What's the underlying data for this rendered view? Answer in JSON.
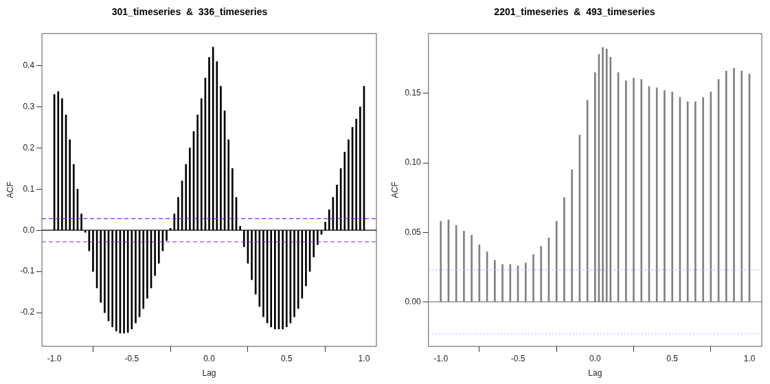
{
  "chart_data": [
    {
      "type": "bar",
      "title": "301_timeseries  &  336_timeseries",
      "xlabel": "Lag",
      "ylabel": "ACF",
      "color": "#000000",
      "x": [
        -1,
        -0.975,
        -0.95,
        -0.925,
        -0.9,
        -0.875,
        -0.85,
        -0.825,
        -0.8,
        -0.775,
        -0.75,
        -0.725,
        -0.7,
        -0.675,
        -0.65,
        -0.625,
        -0.6,
        -0.575,
        -0.55,
        -0.525,
        -0.5,
        -0.475,
        -0.45,
        -0.425,
        -0.4,
        -0.375,
        -0.35,
        -0.325,
        -0.3,
        -0.275,
        -0.25,
        -0.225,
        -0.2,
        -0.175,
        -0.15,
        -0.125,
        -0.1,
        -0.075,
        -0.05,
        -0.025,
        0,
        0.025,
        0.05,
        0.075,
        0.1,
        0.125,
        0.15,
        0.175,
        0.2,
        0.225,
        0.25,
        0.275,
        0.3,
        0.325,
        0.35,
        0.375,
        0.4,
        0.425,
        0.45,
        0.475,
        0.5,
        0.525,
        0.55,
        0.575,
        0.6,
        0.625,
        0.65,
        0.675,
        0.7,
        0.725,
        0.75,
        0.775,
        0.8,
        0.825,
        0.85,
        0.875,
        0.9,
        0.925,
        0.95,
        0.975,
        1
      ],
      "values": [
        0.33,
        0.337,
        0.32,
        0.28,
        0.22,
        0.16,
        0.1,
        0.04,
        -0.005,
        -0.05,
        -0.1,
        -0.14,
        -0.175,
        -0.2,
        -0.22,
        -0.235,
        -0.245,
        -0.25,
        -0.25,
        -0.248,
        -0.24,
        -0.225,
        -0.21,
        -0.19,
        -0.165,
        -0.14,
        -0.11,
        -0.08,
        -0.05,
        -0.025,
        0.005,
        0.04,
        0.08,
        0.12,
        0.16,
        0.2,
        0.24,
        0.28,
        0.32,
        0.37,
        0.42,
        0.445,
        0.41,
        0.35,
        0.29,
        0.22,
        0.15,
        0.08,
        0.01,
        -0.04,
        -0.08,
        -0.12,
        -0.155,
        -0.185,
        -0.21,
        -0.225,
        -0.235,
        -0.24,
        -0.24,
        -0.24,
        -0.235,
        -0.225,
        -0.21,
        -0.19,
        -0.165,
        -0.135,
        -0.1,
        -0.065,
        -0.035,
        -0.01,
        0.02,
        0.05,
        0.08,
        0.11,
        0.15,
        0.19,
        0.22,
        0.25,
        0.27,
        0.3,
        0.35
      ],
      "xlim": [
        -1.08,
        1.08
      ],
      "ylim": [
        -0.282,
        0.478
      ],
      "xticks": [
        {
          "value": -1,
          "label": "-1.0"
        },
        {
          "value": -0.5,
          "label": "-0.5"
        },
        {
          "value": 0,
          "label": "0.0"
        },
        {
          "value": 0.5,
          "label": "0.5"
        },
        {
          "value": 1,
          "label": "1.0"
        }
      ],
      "yticks": [
        {
          "value": -0.2,
          "label": "-0.2"
        },
        {
          "value": -0.1,
          "label": "-0.1"
        },
        {
          "value": 0,
          "label": "0.0"
        },
        {
          "value": 0.1,
          "label": "0.1"
        },
        {
          "value": 0.2,
          "label": "0.2"
        },
        {
          "value": 0.3,
          "label": "0.3"
        },
        {
          "value": 0.4,
          "label": "0.4"
        }
      ],
      "ref_lines": [
        {
          "axis": "y",
          "value": 0,
          "color": "#000000",
          "line_style": "solid"
        },
        {
          "axis": "y",
          "value": 0.028,
          "color": "#7f1fff",
          "line_style": "dashed"
        },
        {
          "axis": "y",
          "value": -0.028,
          "color": "#7f1fff",
          "line_style": "dashed"
        }
      ]
    },
    {
      "type": "bar",
      "title": "2201_timeseries  &  493_timeseries",
      "xlabel": "Lag",
      "ylabel": "ACF",
      "color": "#808080",
      "x": [
        -1,
        -0.95,
        -0.9,
        -0.85,
        -0.8,
        -0.75,
        -0.7,
        -0.65,
        -0.6,
        -0.55,
        -0.5,
        -0.45,
        -0.4,
        -0.35,
        -0.3,
        -0.25,
        -0.2,
        -0.15,
        -0.1,
        -0.05,
        0,
        0.025,
        0.05,
        0.075,
        0.1,
        0.15,
        0.2,
        0.25,
        0.3,
        0.35,
        0.4,
        0.45,
        0.5,
        0.55,
        0.6,
        0.65,
        0.7,
        0.75,
        0.8,
        0.85,
        0.9,
        0.95,
        1
      ],
      "values": [
        0.058,
        0.059,
        0.055,
        0.051,
        0.048,
        0.041,
        0.036,
        0.03,
        0.027,
        0.027,
        0.026,
        0.028,
        0.034,
        0.04,
        0.046,
        0.058,
        0.075,
        0.095,
        0.12,
        0.145,
        0.165,
        0.178,
        0.183,
        0.182,
        0.176,
        0.165,
        0.159,
        0.161,
        0.16,
        0.155,
        0.154,
        0.152,
        0.151,
        0.147,
        0.144,
        0.144,
        0.147,
        0.151,
        0.16,
        0.166,
        0.168,
        0.166,
        0.164
      ],
      "xlim": [
        -1.08,
        1.08
      ],
      "ylim": [
        -0.032,
        0.193
      ],
      "xticks": [
        {
          "value": -1,
          "label": "-1.0"
        },
        {
          "value": -0.5,
          "label": "-0.5"
        },
        {
          "value": 0,
          "label": "0.0"
        },
        {
          "value": 0.5,
          "label": "0.5"
        },
        {
          "value": 1,
          "label": "1.0"
        }
      ],
      "yticks": [
        {
          "value": 0,
          "label": "0.00"
        },
        {
          "value": 0.05,
          "label": "0.05"
        },
        {
          "value": 0.1,
          "label": "0.10"
        },
        {
          "value": 0.15,
          "label": "0.15"
        }
      ],
      "ref_lines": [
        {
          "axis": "y",
          "value": 0,
          "color": "#808080",
          "line_style": "solid"
        },
        {
          "axis": "y",
          "value": 0.023,
          "color": "#b8a8f8",
          "line_style": "dotted"
        },
        {
          "axis": "y",
          "value": -0.023,
          "color": "#b8a8f8",
          "line_style": "dotted"
        }
      ]
    }
  ]
}
